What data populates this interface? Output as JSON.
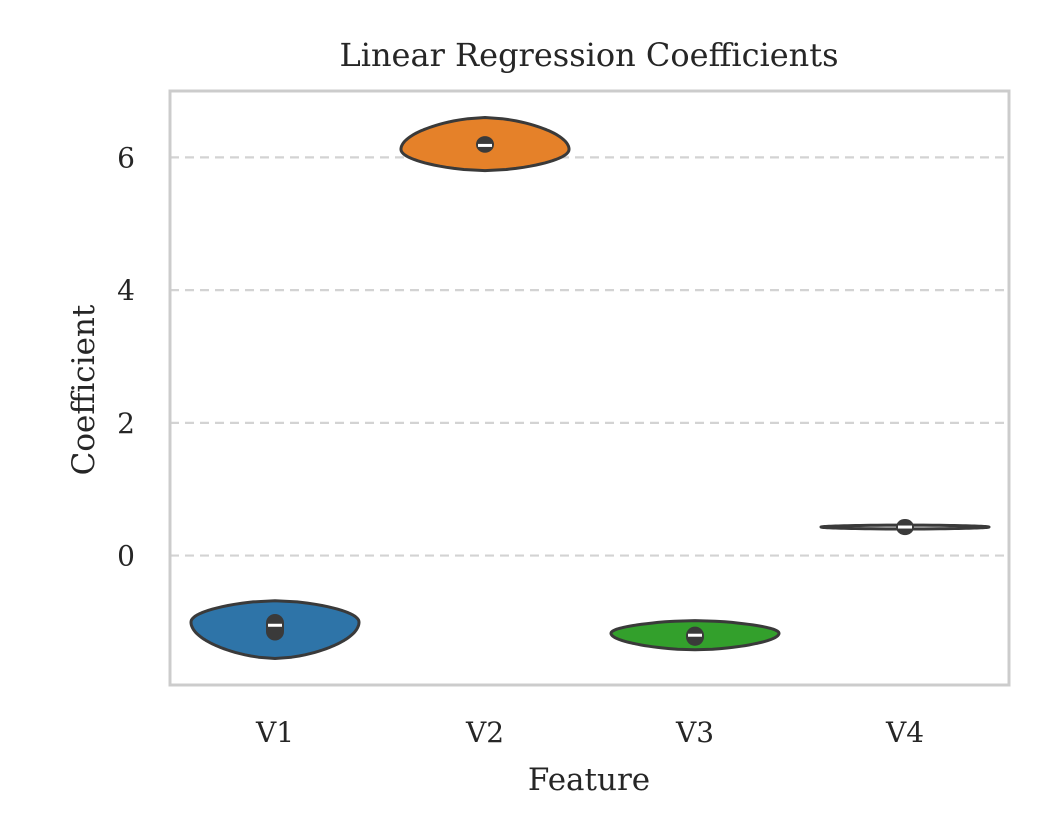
{
  "chart_data": {
    "type": "violin",
    "title": "Linear Regression Coefficients",
    "xlabel": "Feature",
    "ylabel": "Coefficient",
    "categories": [
      "V1",
      "V2",
      "V3",
      "V4"
    ],
    "ylim": [
      -1.95,
      7.0
    ],
    "yticks": [
      0,
      2,
      4,
      6
    ],
    "grid": "y-dashed",
    "colors": {
      "grid": "#d3d3d3",
      "frame": "#cccccc",
      "outline": "#3a3a3a",
      "median": "#ffffff"
    },
    "series": [
      {
        "name": "V1",
        "color": "#2e74a8",
        "min": -1.55,
        "max": -0.68,
        "q1": -1.28,
        "median": -1.05,
        "q3": -0.88,
        "density_peak": -1.0
      },
      {
        "name": "V2",
        "color": "#e58129",
        "min": 5.8,
        "max": 6.6,
        "q1": 6.07,
        "median": 6.18,
        "q3": 6.32,
        "density_peak": 6.12
      },
      {
        "name": "V3",
        "color": "#33a02c",
        "min": -1.42,
        "max": -0.98,
        "q1": -1.36,
        "median": -1.2,
        "q3": -1.07,
        "density_peak": -1.17
      },
      {
        "name": "V4",
        "color": "#e7e7e7",
        "min": 0.4,
        "max": 0.46,
        "q1": 0.41,
        "median": 0.43,
        "q3": 0.45,
        "density_peak": 0.43
      }
    ]
  }
}
